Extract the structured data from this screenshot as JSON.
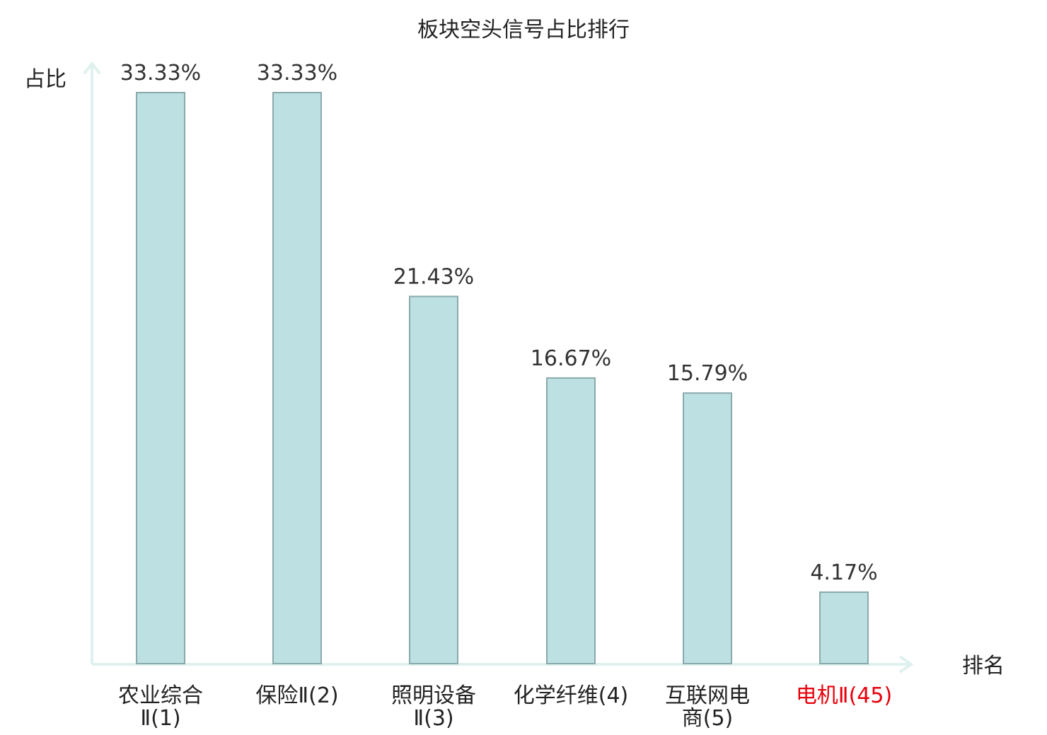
{
  "colors": {
    "bar_fill": "#bde0e2",
    "bar_stroke": "#8aa9ab",
    "axis": "#dff1ee",
    "label_default": "#222222",
    "label_highlight": "#e8000b",
    "value_label": "#333333"
  },
  "chart_data": {
    "type": "bar",
    "title": "板块空头信号占比排行",
    "ylabel": "占比",
    "xlabel": "排名",
    "ylim": [
      0,
      35
    ],
    "grid": false,
    "value_unit": "%",
    "categories": [
      [
        "农业综合",
        "Ⅱ(1)"
      ],
      [
        "保险Ⅱ(2)"
      ],
      [
        "照明设备",
        "Ⅱ(3)"
      ],
      [
        "化学纤维(4)"
      ],
      [
        "互联网电",
        "商(5)"
      ],
      [
        "电机Ⅱ(45)"
      ]
    ],
    "values": [
      33.33,
      33.33,
      21.43,
      16.67,
      15.79,
      4.17
    ],
    "value_labels": [
      "33.33%",
      "33.33%",
      "21.43%",
      "16.67%",
      "15.79%",
      "4.17%"
    ],
    "highlighted_index": 5
  }
}
